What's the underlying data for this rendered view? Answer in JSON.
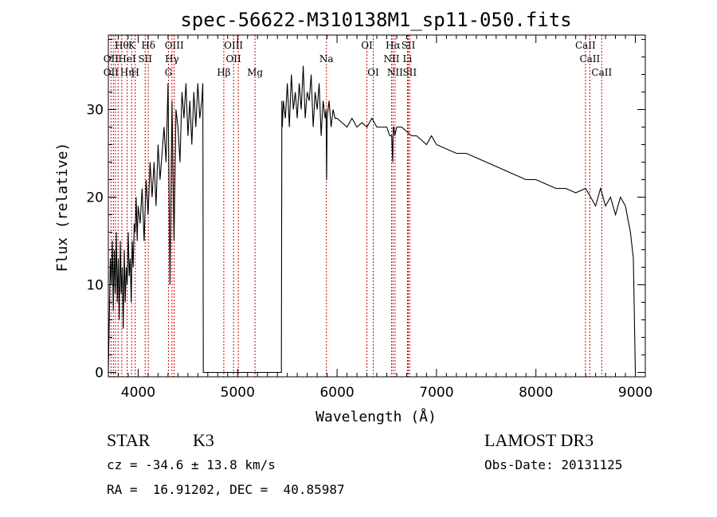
{
  "info": {
    "object_type": "STAR",
    "subclass": "K3",
    "survey": "LAMOST DR3",
    "cz": "cz = -34.6 ± 13.8 km/s",
    "obs_date": "Obs-Date: 20131125",
    "coords": "RA =  16.91202, DEC =  40.85987"
  },
  "chart_data": {
    "type": "line",
    "title": "spec-56622-M310138M1_sp11-050.fits",
    "xlabel": "Wavelength (Å)",
    "ylabel": "Flux (relative)",
    "xlim": [
      3700,
      9100
    ],
    "ylim": [
      -0.5,
      38.5
    ],
    "x_ticks": [
      4000,
      5000,
      6000,
      7000,
      8000,
      9000
    ],
    "y_ticks": [
      0,
      10,
      20,
      30
    ],
    "grid": false,
    "series": [
      {
        "x": [
          3700,
          3710,
          3720,
          3730,
          3740,
          3750,
          3760,
          3770,
          3780,
          3790,
          3800,
          3810,
          3820,
          3830,
          3840,
          3850,
          3860,
          3870,
          3880,
          3890,
          3900,
          3910,
          3920,
          3930,
          3940,
          3950,
          3960,
          3970,
          3980,
          3990,
          4000,
          4020,
          4040,
          4060,
          4080,
          4100,
          4120,
          4140,
          4160,
          4180,
          4200,
          4220,
          4240,
          4260,
          4280,
          4300,
          4320,
          4340,
          4360,
          4380,
          4400,
          4420,
          4440,
          4460,
          4480,
          4500,
          4520,
          4540,
          4560,
          4580,
          4600,
          4620,
          4640,
          4650,
          4655,
          4660,
          5440,
          5445,
          5450,
          5460,
          5480,
          5500,
          5520,
          5540,
          5560,
          5580,
          5600,
          5620,
          5640,
          5660,
          5680,
          5700,
          5720,
          5740,
          5760,
          5780,
          5800,
          5820,
          5840,
          5860,
          5880,
          5890,
          5895,
          5900,
          5910,
          5920,
          5940,
          5960,
          5980,
          6000,
          6050,
          6100,
          6150,
          6200,
          6250,
          6300,
          6350,
          6400,
          6450,
          6500,
          6530,
          6550,
          6560,
          6565,
          6570,
          6580,
          6600,
          6650,
          6700,
          6750,
          6800,
          6850,
          6900,
          6950,
          7000,
          7100,
          7200,
          7300,
          7400,
          7500,
          7600,
          7700,
          7800,
          7900,
          8000,
          8100,
          8200,
          8300,
          8400,
          8500,
          8550,
          8600,
          8650,
          8700,
          8750,
          8800,
          8850,
          8900,
          8950,
          8980,
          9000
        ],
        "y": [
          0,
          6,
          13,
          10,
          15,
          7,
          14,
          9,
          16,
          8,
          13,
          6,
          15,
          9,
          12,
          5,
          14,
          8,
          12,
          10,
          16,
          11,
          13,
          8,
          15,
          12,
          17,
          16,
          20,
          15,
          19,
          17,
          21,
          15,
          22,
          18,
          24,
          20,
          24,
          19,
          26,
          22,
          25,
          28,
          24,
          33,
          10,
          31,
          15,
          30,
          28,
          24,
          32,
          29,
          33,
          27,
          31,
          26,
          32,
          28,
          33,
          29,
          31,
          33,
          0,
          0,
          0,
          31,
          28,
          31,
          29,
          33,
          28,
          34,
          30,
          32,
          29,
          33,
          30,
          35,
          29,
          32,
          31,
          34,
          28,
          32,
          30,
          33,
          27,
          31,
          29,
          30,
          22,
          29,
          30,
          31,
          28,
          30,
          29,
          29,
          28.5,
          28,
          29,
          28,
          28.5,
          28,
          29,
          28,
          28,
          28,
          27,
          27,
          24,
          28,
          28,
          27,
          28,
          28,
          27.5,
          27,
          27,
          26.5,
          26,
          27,
          26,
          25.5,
          25,
          25,
          24.5,
          24,
          23.5,
          23,
          22.5,
          22,
          22,
          21.5,
          21,
          21,
          20.5,
          21,
          20,
          19,
          21,
          19,
          20,
          18,
          20,
          19,
          16,
          13,
          0
        ]
      }
    ],
    "annotations": {
      "top": [
        {
          "x": 3835,
          "row": 1,
          "text": "Hθ"
        },
        {
          "x": 3935,
          "row": 1,
          "text": "K"
        },
        {
          "x": 4102,
          "row": 1,
          "text": "Hδ"
        },
        {
          "x": 4363,
          "row": 1,
          "text": "OIII"
        },
        {
          "x": 4959,
          "row": 1,
          "text": "OIII"
        },
        {
          "x": 6300,
          "row": 1,
          "text": "OI"
        },
        {
          "x": 6563,
          "row": 1,
          "text": "Hα"
        },
        {
          "x": 6717,
          "row": 1,
          "text": "SII"
        },
        {
          "x": 8498,
          "row": 1,
          "text": "CaII"
        },
        {
          "x": 3727,
          "row": 2,
          "text": "OII"
        },
        {
          "x": 3889,
          "row": 2,
          "text": "HeI"
        },
        {
          "x": 4070,
          "row": 2,
          "text": "SII"
        },
        {
          "x": 4340,
          "row": 2,
          "text": "Hγ"
        },
        {
          "x": 4959,
          "row": 2,
          "text": "OII"
        },
        {
          "x": 5893,
          "row": 2,
          "text": "Na"
        },
        {
          "x": 6548,
          "row": 2,
          "text": "NII"
        },
        {
          "x": 6708,
          "row": 2,
          "text": "Li"
        },
        {
          "x": 8542,
          "row": 2,
          "text": "CaII"
        },
        {
          "x": 3727,
          "row": 3,
          "text": "OII"
        },
        {
          "x": 3889,
          "row": 3,
          "text": "Hη"
        },
        {
          "x": 3970,
          "row": 3,
          "text": "H"
        },
        {
          "x": 4304,
          "row": 3,
          "text": "G"
        },
        {
          "x": 4861,
          "row": 3,
          "text": "Hβ"
        },
        {
          "x": 5175,
          "row": 3,
          "text": "Mg"
        },
        {
          "x": 6364,
          "row": 3,
          "text": "OI"
        },
        {
          "x": 6583,
          "row": 3,
          "text": "NII"
        },
        {
          "x": 6731,
          "row": 3,
          "text": "SII"
        },
        {
          "x": 8662,
          "row": 3,
          "text": "CaII"
        }
      ]
    },
    "line_marker_color": "#cc0000",
    "line_marker_wavelengths": [
      3727,
      3750,
      3771,
      3798,
      3835,
      3889,
      3934,
      3970,
      4070,
      4102,
      4304,
      4340,
      4363,
      4861,
      4959,
      5007,
      5175,
      5893,
      6300,
      6364,
      6548,
      6563,
      6583,
      6708,
      6717,
      6731,
      8498,
      8542,
      8662
    ]
  }
}
